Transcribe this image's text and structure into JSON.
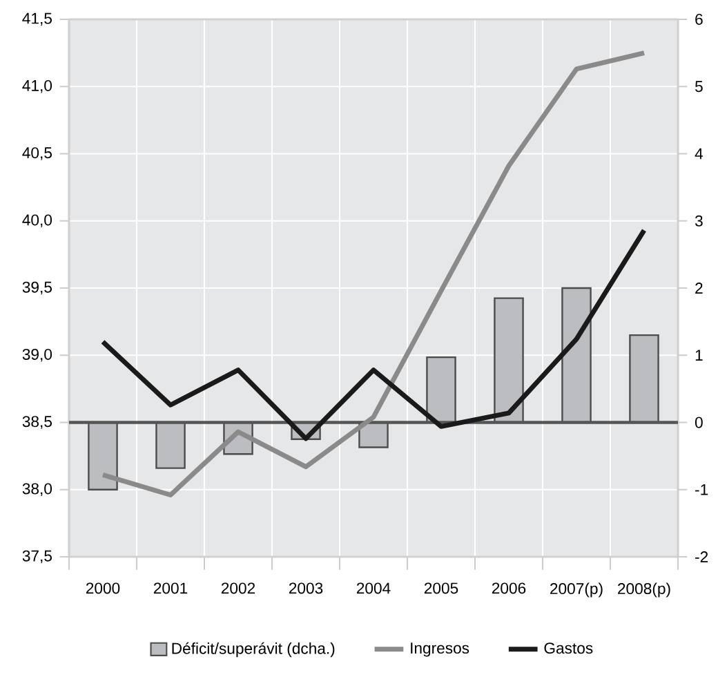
{
  "chart_data": {
    "type": "line",
    "categories": [
      "2000",
      "2001",
      "2002",
      "2003",
      "2004",
      "2005",
      "2006",
      "2007(p)",
      "2008(p)"
    ],
    "series": [
      {
        "name": "Déficit/superávit (dcha.)",
        "type": "bar",
        "axis": "y2",
        "color": "#bcbdc0",
        "values": [
          -1.0,
          -0.68,
          -0.47,
          -0.25,
          -0.37,
          0.97,
          1.85,
          2.0,
          1.3
        ]
      },
      {
        "name": "Ingresos",
        "color": "#8a8a8a",
        "values": [
          38.11,
          37.96,
          38.43,
          38.17,
          38.54,
          39.48,
          40.41,
          41.13,
          41.25
        ]
      },
      {
        "name": "Gastos",
        "color": "#1a1a1a",
        "values": [
          39.1,
          38.63,
          38.89,
          38.38,
          38.89,
          38.47,
          38.57,
          39.12,
          39.93
        ]
      }
    ],
    "ylim": [
      37.5,
      41.5
    ],
    "yticks": [
      {
        "value": 37.5,
        "label": "37,5"
      },
      {
        "value": 38.0,
        "label": "38,0"
      },
      {
        "value": 38.5,
        "label": "38,5"
      },
      {
        "value": 39.0,
        "label": "39,0"
      },
      {
        "value": 39.5,
        "label": "39,5"
      },
      {
        "value": 40.0,
        "label": "40,0"
      },
      {
        "value": 40.5,
        "label": "40,5"
      },
      {
        "value": 41.0,
        "label": "41,0"
      },
      {
        "value": 41.5,
        "label": "41,5"
      }
    ],
    "y2lim": [
      -2,
      6
    ],
    "y2ticks": [
      -2,
      -1,
      0,
      1,
      2,
      3,
      4,
      5,
      6
    ],
    "ref_lines": [
      {
        "axis": "y2",
        "value": 0,
        "color": "#555555"
      }
    ],
    "grid": true,
    "legend": "bottom"
  }
}
